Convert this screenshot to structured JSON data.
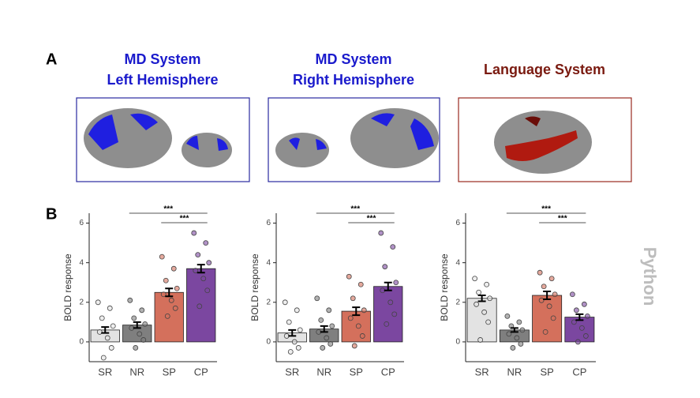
{
  "panel_a": {
    "label": "A",
    "titles": [
      {
        "lines": [
          "MD System",
          "Left Hemisphere"
        ],
        "color": "#1a1acc"
      },
      {
        "lines": [
          "MD System",
          "Right Hemisphere"
        ],
        "color": "#1a1acc"
      },
      {
        "lines": [
          "Language System"
        ],
        "color": "#7a1a10"
      }
    ]
  },
  "panel_b": {
    "label": "B",
    "side_label": "Python"
  },
  "chart_data": [
    {
      "type": "bar",
      "ylabel": "BOLD response",
      "categories": [
        "SR",
        "NR",
        "SP",
        "CP"
      ],
      "colors": [
        "#e3e3e3",
        "#7f7f7f",
        "#d4705c",
        "#7b47a0"
      ],
      "values": [
        0.6,
        0.85,
        2.5,
        3.7
      ],
      "errors": [
        0.15,
        0.15,
        0.2,
        0.2
      ],
      "points": [
        [
          2.0,
          1.7,
          1.2,
          0.8,
          0.5,
          0.2,
          -0.3,
          -0.8
        ],
        [
          2.1,
          1.6,
          1.2,
          0.9,
          0.7,
          0.4,
          0.1,
          -0.3
        ],
        [
          4.3,
          3.7,
          3.1,
          2.7,
          2.4,
          2.1,
          1.7,
          1.3
        ],
        [
          5.5,
          5.0,
          4.4,
          4.0,
          3.6,
          3.2,
          2.6,
          1.8
        ]
      ],
      "ylim": [
        -1,
        6.5
      ],
      "yticks": [
        0,
        2,
        4,
        6
      ],
      "significance": [
        {
          "from": "NR",
          "to": "CP",
          "label": "***"
        },
        {
          "from": "SP",
          "to": "CP",
          "label": "***"
        }
      ]
    },
    {
      "type": "bar",
      "ylabel": "BOLD response",
      "categories": [
        "SR",
        "NR",
        "SP",
        "CP"
      ],
      "colors": [
        "#e3e3e3",
        "#7f7f7f",
        "#d4705c",
        "#7b47a0"
      ],
      "values": [
        0.45,
        0.65,
        1.55,
        2.8
      ],
      "errors": [
        0.15,
        0.15,
        0.2,
        0.2
      ],
      "points": [
        [
          2.0,
          1.6,
          1.0,
          0.6,
          0.3,
          0.0,
          -0.3,
          -0.5
        ],
        [
          2.2,
          1.6,
          1.1,
          0.8,
          0.5,
          0.2,
          -0.1,
          -0.3
        ],
        [
          3.3,
          2.9,
          2.2,
          1.6,
          1.2,
          0.8,
          0.3,
          -0.2
        ],
        [
          5.5,
          4.8,
          3.8,
          3.0,
          2.6,
          2.0,
          1.4,
          0.9
        ]
      ],
      "ylim": [
        -1,
        6.5
      ],
      "yticks": [
        0,
        2,
        4,
        6
      ],
      "significance": [
        {
          "from": "NR",
          "to": "CP",
          "label": "***"
        },
        {
          "from": "SP",
          "to": "CP",
          "label": "***"
        }
      ]
    },
    {
      "type": "bar",
      "ylabel": "BOLD response",
      "categories": [
        "SR",
        "NR",
        "SP",
        "CP"
      ],
      "colors": [
        "#e3e3e3",
        "#7f7f7f",
        "#d4705c",
        "#7b47a0"
      ],
      "values": [
        2.2,
        0.6,
        2.35,
        1.25
      ],
      "errors": [
        0.15,
        0.1,
        0.2,
        0.15
      ],
      "points": [
        [
          3.2,
          2.9,
          2.5,
          2.2,
          1.9,
          1.5,
          1.0,
          0.1
        ],
        [
          1.3,
          1.0,
          0.8,
          0.6,
          0.4,
          0.2,
          -0.1,
          -0.3
        ],
        [
          3.5,
          3.2,
          2.8,
          2.4,
          2.1,
          1.8,
          1.2,
          0.5
        ],
        [
          2.4,
          1.9,
          1.6,
          1.3,
          1.0,
          0.7,
          0.3,
          0.0
        ]
      ],
      "ylim": [
        -1,
        6.5
      ],
      "yticks": [
        0,
        2,
        4,
        6
      ],
      "significance": [
        {
          "from": "NR",
          "to": "CP",
          "label": "***"
        },
        {
          "from": "SP",
          "to": "CP",
          "label": "***"
        }
      ]
    }
  ]
}
